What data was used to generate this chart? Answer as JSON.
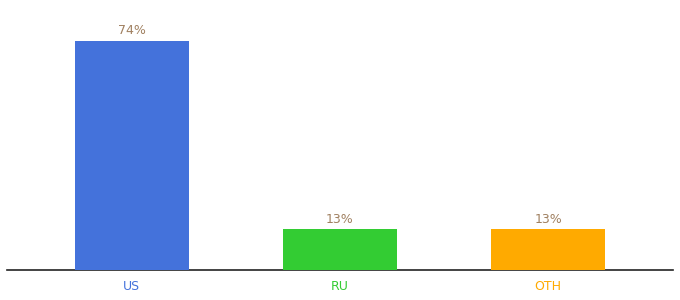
{
  "categories": [
    "US",
    "RU",
    "OTH"
  ],
  "values": [
    74,
    13,
    13
  ],
  "bar_colors": [
    "#4472db",
    "#33cc33",
    "#ffaa00"
  ],
  "label_texts": [
    "74%",
    "13%",
    "13%"
  ],
  "label_color": "#a08060",
  "background_color": "#ffffff",
  "ylim": [
    0,
    85
  ],
  "bar_width": 0.55,
  "x_positions": [
    0,
    1,
    2
  ],
  "figsize": [
    6.8,
    3.0
  ],
  "dpi": 100,
  "tick_fontsize": 9,
  "label_fontsize": 9
}
